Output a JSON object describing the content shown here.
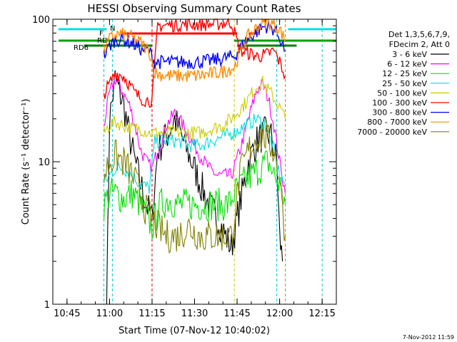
{
  "chart_data": {
    "type": "line",
    "title": "HESSI Observing Summary Count Rates",
    "xlabel": "Start Time (07-Nov-12 10:40:02)",
    "ylabel": "Count Rate (s⁻¹ detector⁻¹)",
    "y_scale": "log",
    "ylim": [
      1,
      100
    ],
    "x_range": [
      "10:40",
      "12:20"
    ],
    "x_ticks": [
      "10:45",
      "11:00",
      "11:15",
      "11:30",
      "11:45",
      "12:00",
      "12:15"
    ],
    "y_ticks": [
      "1",
      "10",
      "100"
    ],
    "footer_timestamp": "7-Nov-2012 11:59",
    "legend": {
      "header": [
        "Det 1,3,5,6,7,9,",
        "FDecim 2, Att 0"
      ],
      "position": "right"
    },
    "flag_labels": [
      {
        "label": "N",
        "color": "#00e0e0"
      },
      {
        "label": "F",
        "color": "#ff0000"
      },
      {
        "label": "RD",
        "color": "#00a000"
      },
      {
        "label": "RD6",
        "color": "#008000"
      }
    ],
    "series": [
      {
        "name": "3 - 6 keV",
        "color": "#000000",
        "points": [
          [
            "10:59",
            1
          ],
          [
            "11:00",
            20
          ],
          [
            "11:02",
            38
          ],
          [
            "11:05",
            25
          ],
          [
            "11:07",
            15
          ],
          [
            "11:09",
            10
          ],
          [
            "11:11",
            7
          ],
          [
            "11:13",
            5
          ],
          [
            "11:15",
            4
          ],
          [
            "11:17",
            12
          ],
          [
            "11:20",
            15
          ],
          [
            "11:23",
            20
          ],
          [
            "11:26",
            14
          ],
          [
            "11:29",
            10
          ],
          [
            "11:32",
            7
          ],
          [
            "11:35",
            5
          ],
          [
            "11:38",
            4
          ],
          [
            "11:41",
            3
          ],
          [
            "11:43",
            2.5
          ],
          [
            "11:46",
            5
          ],
          [
            "11:49",
            10
          ],
          [
            "11:52",
            14
          ],
          [
            "11:55",
            16
          ],
          [
            "11:57",
            15
          ],
          [
            "11:59",
            10
          ],
          [
            "12:00",
            3
          ],
          [
            "12:01",
            2
          ]
        ]
      },
      {
        "name": "6 - 12 keV",
        "color": "#ff00ff",
        "points": [
          [
            "10:58",
            18
          ],
          [
            "11:00",
            30
          ],
          [
            "11:02",
            38
          ],
          [
            "11:05",
            30
          ],
          [
            "11:07",
            25
          ],
          [
            "11:09",
            18
          ],
          [
            "11:11",
            12
          ],
          [
            "11:13",
            10
          ],
          [
            "11:15",
            9
          ],
          [
            "11:17",
            12
          ],
          [
            "11:20",
            18
          ],
          [
            "11:23",
            22
          ],
          [
            "11:26",
            18
          ],
          [
            "11:29",
            14
          ],
          [
            "11:32",
            11
          ],
          [
            "11:35",
            9
          ],
          [
            "11:38",
            8
          ],
          [
            "11:41",
            8
          ],
          [
            "11:43",
            8
          ],
          [
            "11:46",
            12
          ],
          [
            "11:49",
            20
          ],
          [
            "11:52",
            32
          ],
          [
            "11:54",
            35
          ],
          [
            "11:56",
            28
          ],
          [
            "11:58",
            18
          ],
          [
            "12:00",
            10
          ],
          [
            "12:02",
            6
          ]
        ]
      },
      {
        "name": "12 - 25 keV",
        "color": "#00e000",
        "points": [
          [
            "10:58",
            5
          ],
          [
            "11:00",
            6
          ],
          [
            "11:02",
            6
          ],
          [
            "11:05",
            5.5
          ],
          [
            "11:08",
            6
          ],
          [
            "11:11",
            5
          ],
          [
            "11:13",
            4
          ],
          [
            "11:15",
            3.5
          ],
          [
            "11:18",
            5
          ],
          [
            "11:21",
            5.5
          ],
          [
            "11:24",
            5
          ],
          [
            "11:27",
            5
          ],
          [
            "11:30",
            5
          ],
          [
            "11:33",
            5
          ],
          [
            "11:36",
            5
          ],
          [
            "11:39",
            5
          ],
          [
            "11:42",
            5
          ],
          [
            "11:44",
            6
          ],
          [
            "11:47",
            7
          ],
          [
            "11:50",
            8
          ],
          [
            "11:53",
            9
          ],
          [
            "11:56",
            10
          ],
          [
            "11:58",
            8
          ],
          [
            "12:00",
            7
          ],
          [
            "12:02",
            5
          ]
        ]
      },
      {
        "name": "25 - 50 keV",
        "color": "#00e0e0",
        "points": [
          [
            "10:58",
            7
          ],
          [
            "11:00",
            8
          ],
          [
            "11:02",
            9
          ],
          [
            "11:05",
            9
          ],
          [
            "11:08",
            8
          ],
          [
            "11:11",
            7
          ],
          [
            "11:14",
            6.5
          ],
          [
            "11:16",
            14
          ],
          [
            "11:20",
            14
          ],
          [
            "11:24",
            14
          ],
          [
            "11:28",
            13
          ],
          [
            "11:32",
            13
          ],
          [
            "11:36",
            14
          ],
          [
            "11:40",
            15
          ],
          [
            "11:44",
            16
          ],
          [
            "11:48",
            18
          ],
          [
            "11:52",
            20
          ],
          [
            "11:55",
            18
          ],
          [
            "11:58",
            12
          ],
          [
            "12:00",
            8
          ],
          [
            "12:02",
            7
          ]
        ]
      },
      {
        "name": "50 - 100 keV",
        "color": "#cccc00",
        "points": [
          [
            "10:58",
            16
          ],
          [
            "11:00",
            18
          ],
          [
            "11:02",
            19
          ],
          [
            "11:05",
            18
          ],
          [
            "11:08",
            17
          ],
          [
            "11:11",
            17
          ],
          [
            "11:14",
            16
          ],
          [
            "11:16",
            16
          ],
          [
            "11:20",
            16
          ],
          [
            "11:24",
            16
          ],
          [
            "11:28",
            16
          ],
          [
            "11:32",
            16
          ],
          [
            "11:36",
            17
          ],
          [
            "11:40",
            18
          ],
          [
            "11:44",
            21
          ],
          [
            "11:48",
            26
          ],
          [
            "11:52",
            34
          ],
          [
            "11:54",
            36
          ],
          [
            "11:57",
            30
          ],
          [
            "12:00",
            24
          ],
          [
            "12:02",
            20
          ]
        ]
      },
      {
        "name": "100 - 300 keV",
        "color": "#ff0000",
        "points": [
          [
            "10:58",
            30
          ],
          [
            "11:00",
            35
          ],
          [
            "11:02",
            42
          ],
          [
            "11:05",
            40
          ],
          [
            "11:07",
            35
          ],
          [
            "11:09",
            30
          ],
          [
            "11:11",
            28
          ],
          [
            "11:13",
            27
          ],
          [
            "11:15",
            27
          ],
          [
            "11:17",
            90
          ],
          [
            "11:25",
            92
          ],
          [
            "11:35",
            92
          ],
          [
            "11:43",
            95
          ],
          [
            "11:46",
            60
          ],
          [
            "11:49",
            58
          ],
          [
            "11:52",
            55
          ],
          [
            "11:55",
            56
          ],
          [
            "11:58",
            60
          ],
          [
            "12:00",
            50
          ],
          [
            "12:02",
            40
          ]
        ]
      },
      {
        "name": "300 - 800 keV",
        "color": "#0000ff",
        "points": [
          [
            "10:58",
            55
          ],
          [
            "11:00",
            65
          ],
          [
            "11:02",
            72
          ],
          [
            "11:05",
            72
          ],
          [
            "11:08",
            68
          ],
          [
            "11:11",
            62
          ],
          [
            "11:14",
            60
          ],
          [
            "11:16",
            50
          ],
          [
            "11:20",
            50
          ],
          [
            "11:25",
            50
          ],
          [
            "11:30",
            50
          ],
          [
            "11:35",
            51
          ],
          [
            "11:40",
            53
          ],
          [
            "11:44",
            55
          ],
          [
            "11:48",
            70
          ],
          [
            "11:52",
            82
          ],
          [
            "11:55",
            90
          ],
          [
            "11:58",
            85
          ],
          [
            "12:00",
            75
          ],
          [
            "12:02",
            60
          ]
        ]
      },
      {
        "name": "800 - 7000 keV",
        "color": "#ff8c00",
        "points": [
          [
            "10:58",
            60
          ],
          [
            "11:00",
            72
          ],
          [
            "11:02",
            78
          ],
          [
            "11:05",
            78
          ],
          [
            "11:08",
            74
          ],
          [
            "11:11",
            68
          ],
          [
            "11:14",
            60
          ],
          [
            "11:16",
            42
          ],
          [
            "11:20",
            40
          ],
          [
            "11:25",
            40
          ],
          [
            "11:30",
            40
          ],
          [
            "11:35",
            41
          ],
          [
            "11:40",
            43
          ],
          [
            "11:44",
            46
          ],
          [
            "11:48",
            72
          ],
          [
            "11:52",
            88
          ],
          [
            "11:55",
            96
          ],
          [
            "11:58",
            92
          ],
          [
            "12:00",
            85
          ],
          [
            "12:02",
            70
          ]
        ]
      },
      {
        "name": "7000 - 20000 keV",
        "color": "#808000",
        "points": [
          [
            "10:58",
            8
          ],
          [
            "11:00",
            10
          ],
          [
            "11:02",
            11
          ],
          [
            "11:05",
            10
          ],
          [
            "11:08",
            8
          ],
          [
            "11:11",
            6
          ],
          [
            "11:13",
            4.5
          ],
          [
            "11:15",
            4
          ],
          [
            "11:17",
            3.5
          ],
          [
            "11:20",
            3
          ],
          [
            "11:24",
            3
          ],
          [
            "11:28",
            3.5
          ],
          [
            "11:32",
            3
          ],
          [
            "11:36",
            3
          ],
          [
            "11:40",
            3
          ],
          [
            "11:43",
            3
          ],
          [
            "11:46",
            8
          ],
          [
            "11:49",
            12
          ],
          [
            "11:52",
            15
          ],
          [
            "11:55",
            15
          ],
          [
            "11:58",
            12
          ],
          [
            "12:00",
            8
          ],
          [
            "12:02",
            3
          ]
        ]
      }
    ]
  }
}
